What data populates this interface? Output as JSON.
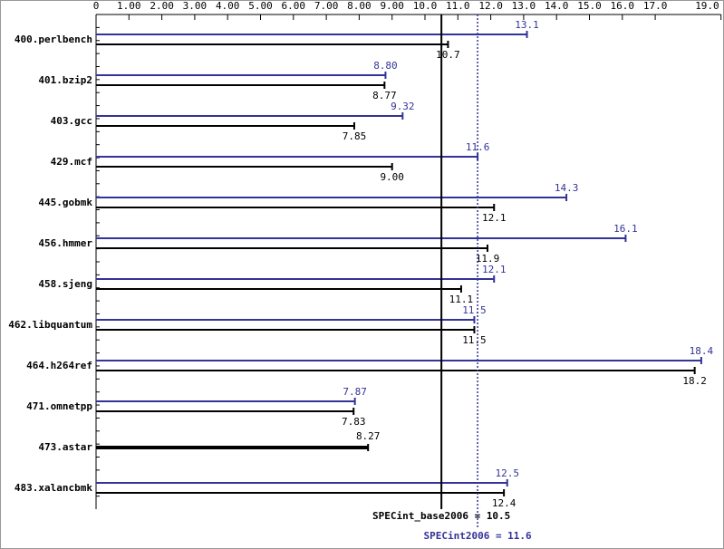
{
  "chart_data": {
    "type": "bar",
    "categories": [
      "400.perlbench",
      "401.bzip2",
      "403.gcc",
      "429.mcf",
      "445.gobmk",
      "456.hmmer",
      "458.sjeng",
      "462.libquantum",
      "464.h264ref",
      "471.omnetpp",
      "473.astar",
      "483.xalancbmk"
    ],
    "series": [
      {
        "name": "SPECint2006",
        "color": "#333399",
        "values": [
          13.1,
          8.8,
          9.32,
          11.6,
          14.3,
          16.1,
          12.1,
          11.5,
          18.4,
          7.87,
          null,
          12.5
        ],
        "value_labels": [
          "13.1",
          "8.80",
          "9.32",
          "11.6",
          "14.3",
          "16.1",
          "12.1",
          "11.5",
          "18.4",
          "7.87",
          null,
          "12.5"
        ]
      },
      {
        "name": "SPECint_base2006",
        "color": "#000000",
        "values": [
          10.7,
          8.77,
          7.85,
          9.0,
          12.1,
          11.9,
          11.1,
          11.5,
          18.2,
          7.83,
          8.27,
          12.4
        ],
        "value_labels": [
          "10.7",
          "8.77",
          "7.85",
          "9.00",
          "12.1",
          "11.9",
          "11.1",
          "11.5",
          "18.2",
          "7.83",
          "8.27",
          "12.4"
        ]
      }
    ],
    "xlim": [
      0,
      19
    ],
    "xticks": [
      0,
      {
        "value": 1,
        "label": "1.00"
      },
      {
        "value": 2,
        "label": "2.00"
      },
      {
        "value": 3,
        "label": "3.00"
      },
      {
        "value": 4,
        "label": "4.00"
      },
      {
        "value": 5,
        "label": "5.00"
      },
      {
        "value": 6,
        "label": "6.00"
      },
      {
        "value": 7,
        "label": "7.00"
      },
      {
        "value": 8,
        "label": "8.00"
      },
      {
        "value": 9,
        "label": "9.00"
      },
      {
        "value": 10,
        "label": "10.0"
      },
      {
        "value": 11,
        "label": "11.0"
      },
      {
        "value": 12,
        "label": "12.0"
      },
      {
        "value": 13,
        "label": "13.0"
      },
      {
        "value": 14,
        "label": "14.0"
      },
      {
        "value": 15,
        "label": "15.0"
      },
      {
        "value": 16,
        "label": "16.0"
      },
      {
        "value": 17,
        "label": "17.0"
      },
      {
        "value": 19,
        "label": "19.0"
      }
    ],
    "reference_lines": [
      {
        "label": "SPECint_base2006 = 10.5",
        "value": 10.5,
        "color": "#000000",
        "style": "solid"
      },
      {
        "label": "SPECint2006 = 11.6",
        "value": 11.6,
        "color": "#333399",
        "style": "dotted"
      }
    ]
  }
}
